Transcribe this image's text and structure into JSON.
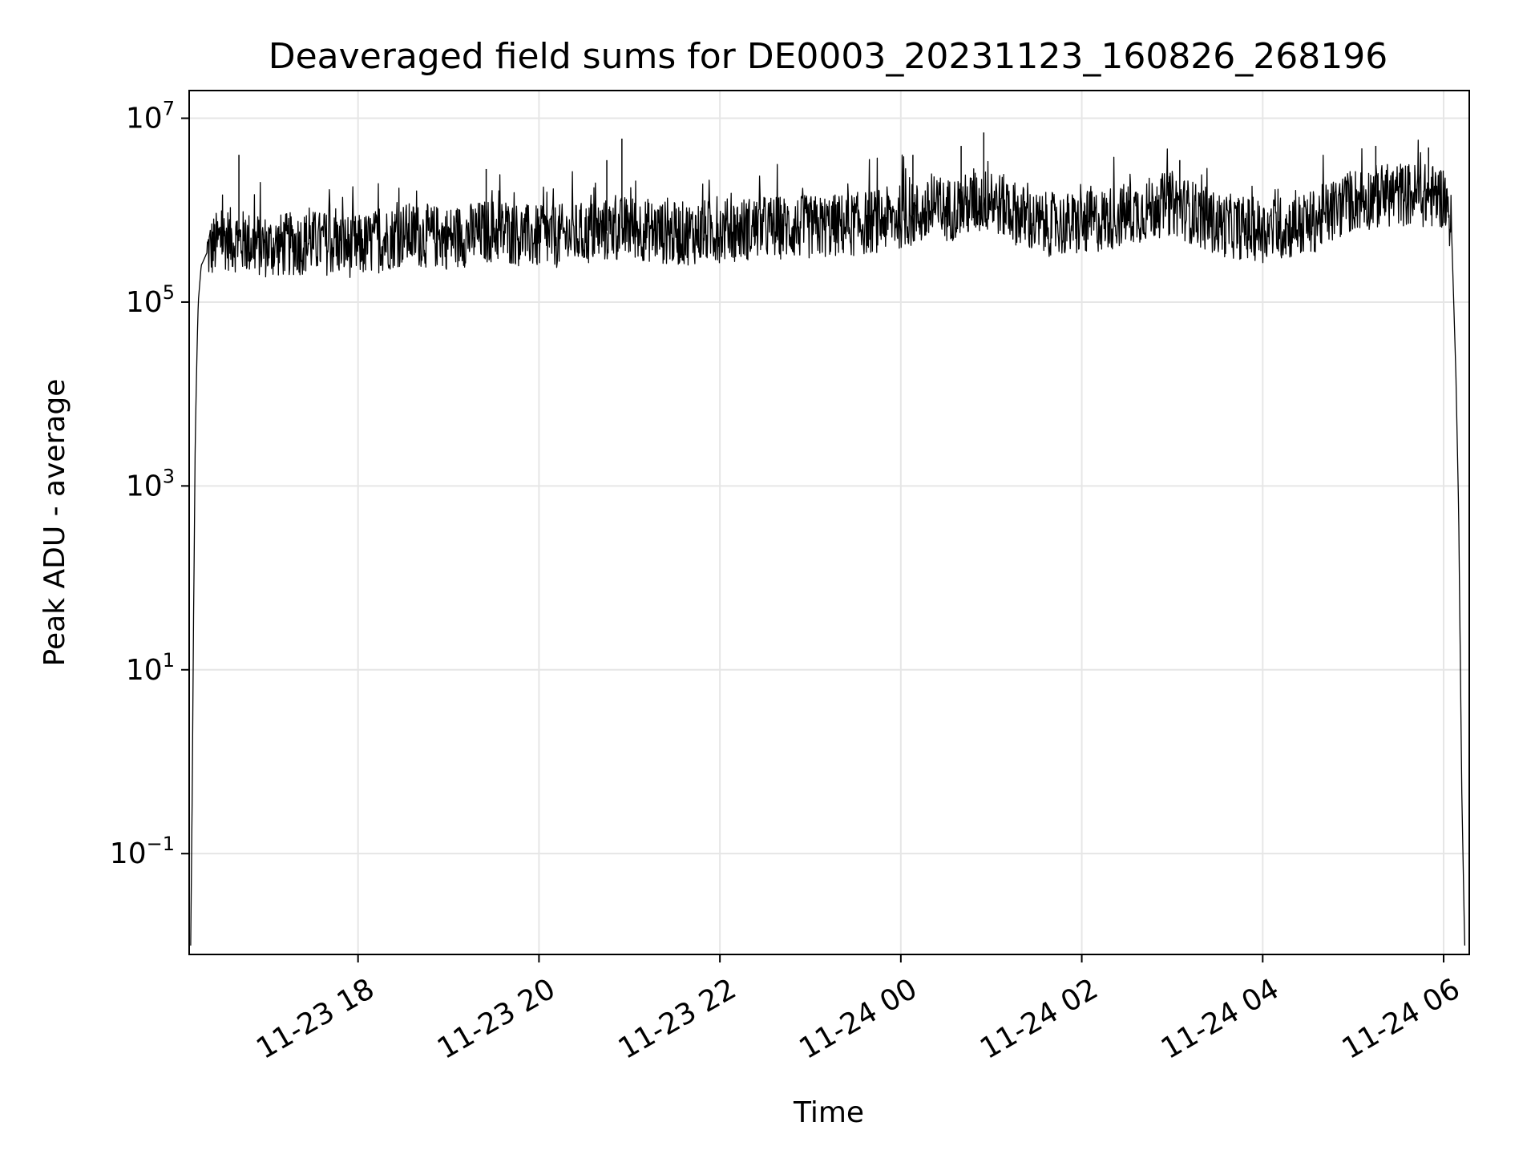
{
  "chart_data": {
    "type": "line",
    "title": "Deaveraged field sums for DE0003_20231123_160826_268196",
    "xlabel": "Time",
    "ylabel": "Peak ADU - average",
    "yscale": "log",
    "grid": true,
    "line_color": "#000000",
    "grid_color": "#e6e6e6",
    "xlim": [
      "2023-11-23 16:08",
      "2023-11-24 06:17"
    ],
    "ylim": [
      0.008,
      20000000
    ],
    "x_ticks": [
      {
        "value": "2023-11-23 18:00",
        "label": "11-23 18"
      },
      {
        "value": "2023-11-23 20:00",
        "label": "11-23 20"
      },
      {
        "value": "2023-11-23 22:00",
        "label": "11-23 22"
      },
      {
        "value": "2023-11-24 00:00",
        "label": "11-24 00"
      },
      {
        "value": "2023-11-24 02:00",
        "label": "11-24 02"
      },
      {
        "value": "2023-11-24 04:00",
        "label": "11-24 04"
      },
      {
        "value": "2023-11-24 06:00",
        "label": "11-24 06"
      }
    ],
    "y_ticks": [
      {
        "value": 0.1,
        "base": "10",
        "exp": "−1"
      },
      {
        "value": 10,
        "base": "10",
        "exp": "1"
      },
      {
        "value": 1000,
        "base": "10",
        "exp": "3"
      },
      {
        "value": 100000,
        "base": "10",
        "exp": "5"
      },
      {
        "value": 10000000,
        "base": "10",
        "exp": "7"
      }
    ],
    "series": [
      {
        "x": [
          "2023-11-23 16:09",
          "2023-11-23 16:10",
          "2023-11-23 16:11",
          "2023-11-23 16:12",
          "2023-11-23 16:13",
          "2023-11-23 16:14",
          "2023-11-23 16:16",
          "2023-11-23 16:20",
          "2023-11-23 16:30",
          "2023-11-23 17:00",
          "2023-11-23 17:30",
          "2023-11-23 18:00",
          "2023-11-23 18:30",
          "2023-11-23 19:00",
          "2023-11-23 19:30",
          "2023-11-23 20:00",
          "2023-11-23 20:30",
          "2023-11-23 21:00",
          "2023-11-23 21:30",
          "2023-11-23 22:00",
          "2023-11-23 22:30",
          "2023-11-23 23:00",
          "2023-11-23 23:30",
          "2023-11-24 00:00",
          "2023-11-24 00:30",
          "2023-11-24 01:00",
          "2023-11-24 01:30",
          "2023-11-24 02:00",
          "2023-11-24 02:30",
          "2023-11-24 03:00",
          "2023-11-24 03:30",
          "2023-11-24 04:00",
          "2023-11-24 04:30",
          "2023-11-24 05:00",
          "2023-11-24 05:30",
          "2023-11-24 06:00",
          "2023-11-24 06:05",
          "2023-11-24 06:08",
          "2023-11-24 06:10",
          "2023-11-24 06:12",
          "2023-11-24 06:14"
        ],
        "y": [
          0.01,
          0.4,
          50,
          3000,
          20000,
          100000,
          250000,
          350000,
          500000,
          400000,
          450000,
          400000,
          550000,
          500000,
          600000,
          500000,
          550000,
          650000,
          550000,
          600000,
          650000,
          650000,
          700000,
          850000,
          1000000,
          1300000,
          700000,
          700000,
          900000,
          1200000,
          700000,
          600000,
          700000,
          1300000,
          1500000,
          1400000,
          800000,
          20000,
          500,
          0.5,
          0.01
        ]
      }
    ],
    "spikes": [
      {
        "x": "2023-11-23 16:41",
        "y": 4000000
      },
      {
        "x": "2023-11-23 20:45",
        "y": 3500000
      },
      {
        "x": "2023-11-23 20:55",
        "y": 6000000
      },
      {
        "x": "2023-11-23 19:25",
        "y": 2800000
      },
      {
        "x": "2023-11-24 00:08",
        "y": 4000000
      },
      {
        "x": "2023-11-24 00:40",
        "y": 5000000
      },
      {
        "x": "2023-11-24 00:55",
        "y": 7000000
      },
      {
        "x": "2023-11-24 03:05",
        "y": 3500000
      },
      {
        "x": "2023-11-24 05:15",
        "y": 5000000
      },
      {
        "x": "2023-11-24 05:50",
        "y": 4800000
      }
    ]
  }
}
